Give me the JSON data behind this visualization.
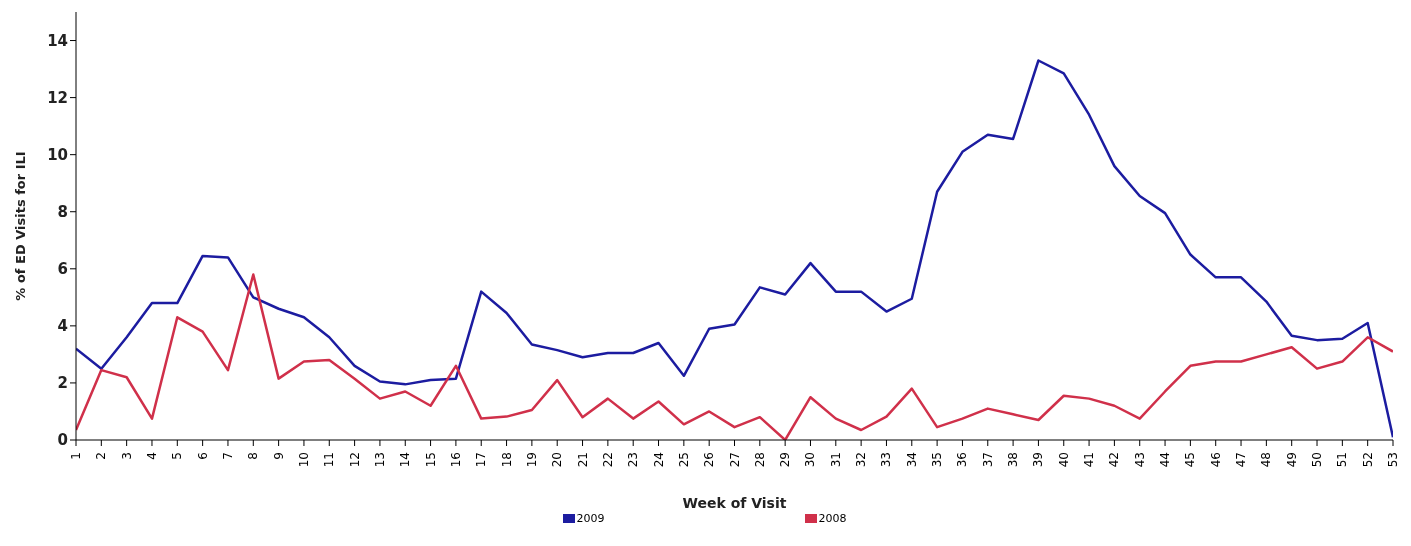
{
  "chart_data": {
    "type": "line",
    "xlabel": "Week of Visit",
    "ylabel": "% of ED Visits for ILI",
    "categories": [
      "1",
      "2",
      "3",
      "4",
      "5",
      "6",
      "7",
      "8",
      "9",
      "10",
      "11",
      "12",
      "13",
      "14",
      "15",
      "16",
      "17",
      "18",
      "19",
      "20",
      "21",
      "22",
      "23",
      "24",
      "25",
      "26",
      "27",
      "28",
      "29",
      "30",
      "31",
      "32",
      "33",
      "34",
      "35",
      "36",
      "37",
      "38",
      "39",
      "40",
      "41",
      "42",
      "43",
      "44",
      "45",
      "46",
      "47",
      "48",
      "49",
      "50",
      "51",
      "52",
      "53"
    ],
    "series": [
      {
        "name": "2009",
        "color": "#1c1ca0",
        "values": [
          3.2,
          2.5,
          3.6,
          4.8,
          4.8,
          6.45,
          6.4,
          5.0,
          4.6,
          4.3,
          3.6,
          2.6,
          2.05,
          1.95,
          2.1,
          2.15,
          5.2,
          4.45,
          3.35,
          3.15,
          2.9,
          3.05,
          3.05,
          3.4,
          2.25,
          3.9,
          4.05,
          5.35,
          5.1,
          6.2,
          5.2,
          5.2,
          4.5,
          4.95,
          8.7,
          10.1,
          10.7,
          10.55,
          13.3,
          12.85,
          11.4,
          9.6,
          8.55,
          7.95,
          6.5,
          5.7,
          5.7,
          4.85,
          3.65,
          3.5,
          3.55,
          4.1,
          0.1
        ]
      },
      {
        "name": "2008",
        "color": "#d0304a",
        "values": [
          0.35,
          2.45,
          2.2,
          0.75,
          4.3,
          3.8,
          2.45,
          5.8,
          2.15,
          2.75,
          2.8,
          2.15,
          1.45,
          1.7,
          1.2,
          2.6,
          0.75,
          0.82,
          1.05,
          2.1,
          0.8,
          1.45,
          0.75,
          1.35,
          0.55,
          1.0,
          0.45,
          0.8,
          0.0,
          1.5,
          0.75,
          0.35,
          0.82,
          1.8,
          0.45,
          0.75,
          1.1,
          0.9,
          0.7,
          1.55,
          1.45,
          1.2,
          0.75,
          1.7,
          2.6,
          2.75,
          2.75,
          3.0,
          3.25,
          2.5,
          2.75,
          3.6,
          3.1
        ]
      }
    ],
    "ylim": [
      0,
      15
    ],
    "yticks": [
      0,
      2,
      4,
      6,
      8,
      10,
      12,
      14
    ],
    "grid": false,
    "legend": "bottom",
    "marker": "none",
    "line_style": "solid"
  }
}
